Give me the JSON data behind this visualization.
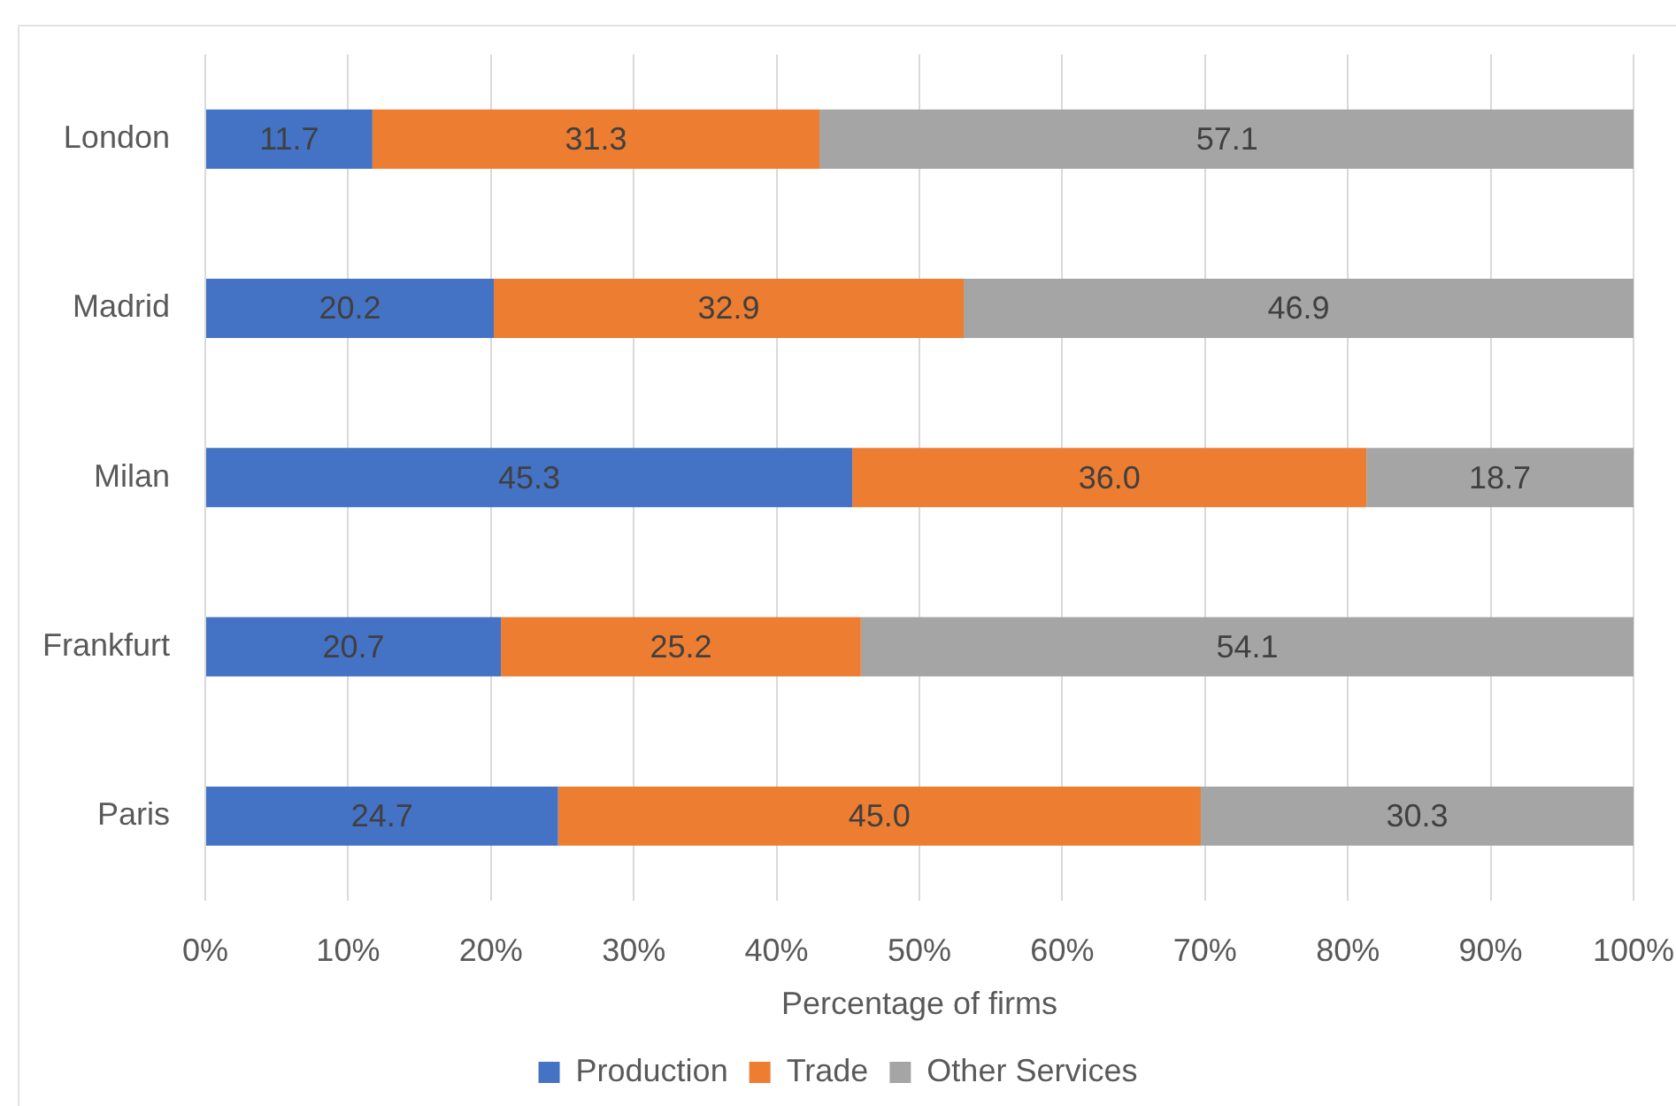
{
  "chart_data": {
    "type": "bar",
    "orientation": "horizontal",
    "stacked": true,
    "categories": [
      "London",
      "Madrid",
      "Milan",
      "Frankfurt",
      "Paris"
    ],
    "series": [
      {
        "name": "Production",
        "color": "#4472c4",
        "values": [
          11.7,
          20.2,
          45.3,
          20.7,
          24.7
        ],
        "value_labels": [
          "11.7",
          "20.2",
          "45.3",
          "20.7",
          "24.7"
        ]
      },
      {
        "name": "Trade",
        "color": "#ed7d31",
        "values": [
          31.3,
          32.9,
          36.0,
          25.2,
          45.0
        ],
        "value_labels": [
          "31.3",
          "32.9",
          "36.0",
          "25.2",
          "45.0"
        ]
      },
      {
        "name": "Other Services",
        "color": "#a5a5a5",
        "values": [
          57.1,
          46.9,
          18.7,
          54.1,
          30.3
        ],
        "value_labels": [
          "57.1",
          "46.9",
          "18.7",
          "54.1",
          "30.3"
        ]
      }
    ],
    "xlim": [
      0,
      100
    ],
    "xticks": [
      {
        "value": 0,
        "label": "0%"
      },
      {
        "value": 10,
        "label": "10%"
      },
      {
        "value": 20,
        "label": "20%"
      },
      {
        "value": 30,
        "label": "30%"
      },
      {
        "value": 40,
        "label": "40%"
      },
      {
        "value": 50,
        "label": "50%"
      },
      {
        "value": 60,
        "label": "60%"
      },
      {
        "value": 70,
        "label": "70%"
      },
      {
        "value": 80,
        "label": "80%"
      },
      {
        "value": 90,
        "label": "90%"
      },
      {
        "value": 100,
        "label": "100%"
      }
    ],
    "xlabel": "Percentage of firms",
    "grid": "x",
    "legend": "bottom"
  }
}
